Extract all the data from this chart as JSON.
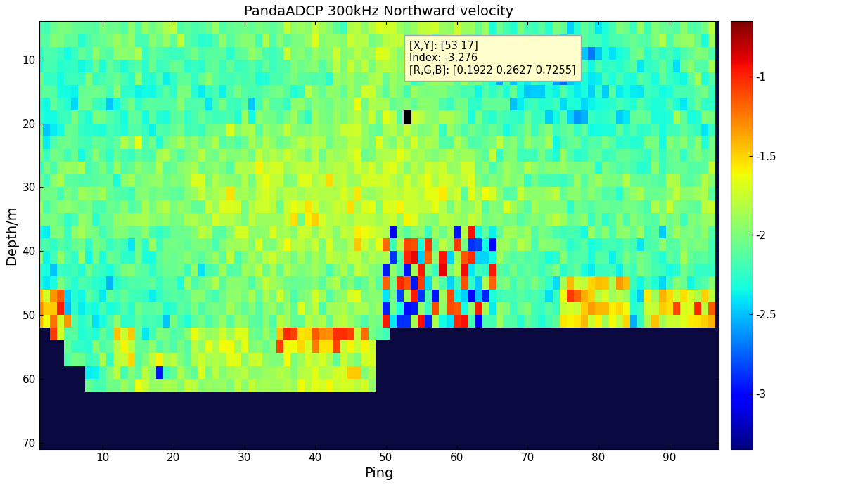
{
  "title": "PandaADCP 300kHz Northward velocity",
  "xlabel": "Ping",
  "ylabel": "Depth/m",
  "xlim": [
    1,
    97
  ],
  "ylim": [
    71,
    4
  ],
  "xticks": [
    10,
    20,
    30,
    40,
    50,
    60,
    70,
    80,
    90
  ],
  "yticks": [
    10,
    20,
    30,
    40,
    50,
    60,
    70
  ],
  "cbar_ticks": [
    -1.0,
    -1.5,
    -2.0,
    -2.5,
    -3.0
  ],
  "cbar_labels": [
    "-1",
    "-1.5",
    "-2",
    "-2.5",
    "-3"
  ],
  "vmin": -3.35,
  "vmax": -0.65,
  "colormap": "jet",
  "n_pings": 96,
  "n_depths": 33,
  "depth_start": 5,
  "depth_step": 2,
  "ping_start": 1,
  "annotation_text": "[X,Y]: [53 17]\nIndex: -3.276\n[R,G,B]: [0.1922 0.2627 0.7255]",
  "marker_ping": 53,
  "marker_depth_layer": 17,
  "background_color": "#ffffff",
  "nan_color": "#090940"
}
